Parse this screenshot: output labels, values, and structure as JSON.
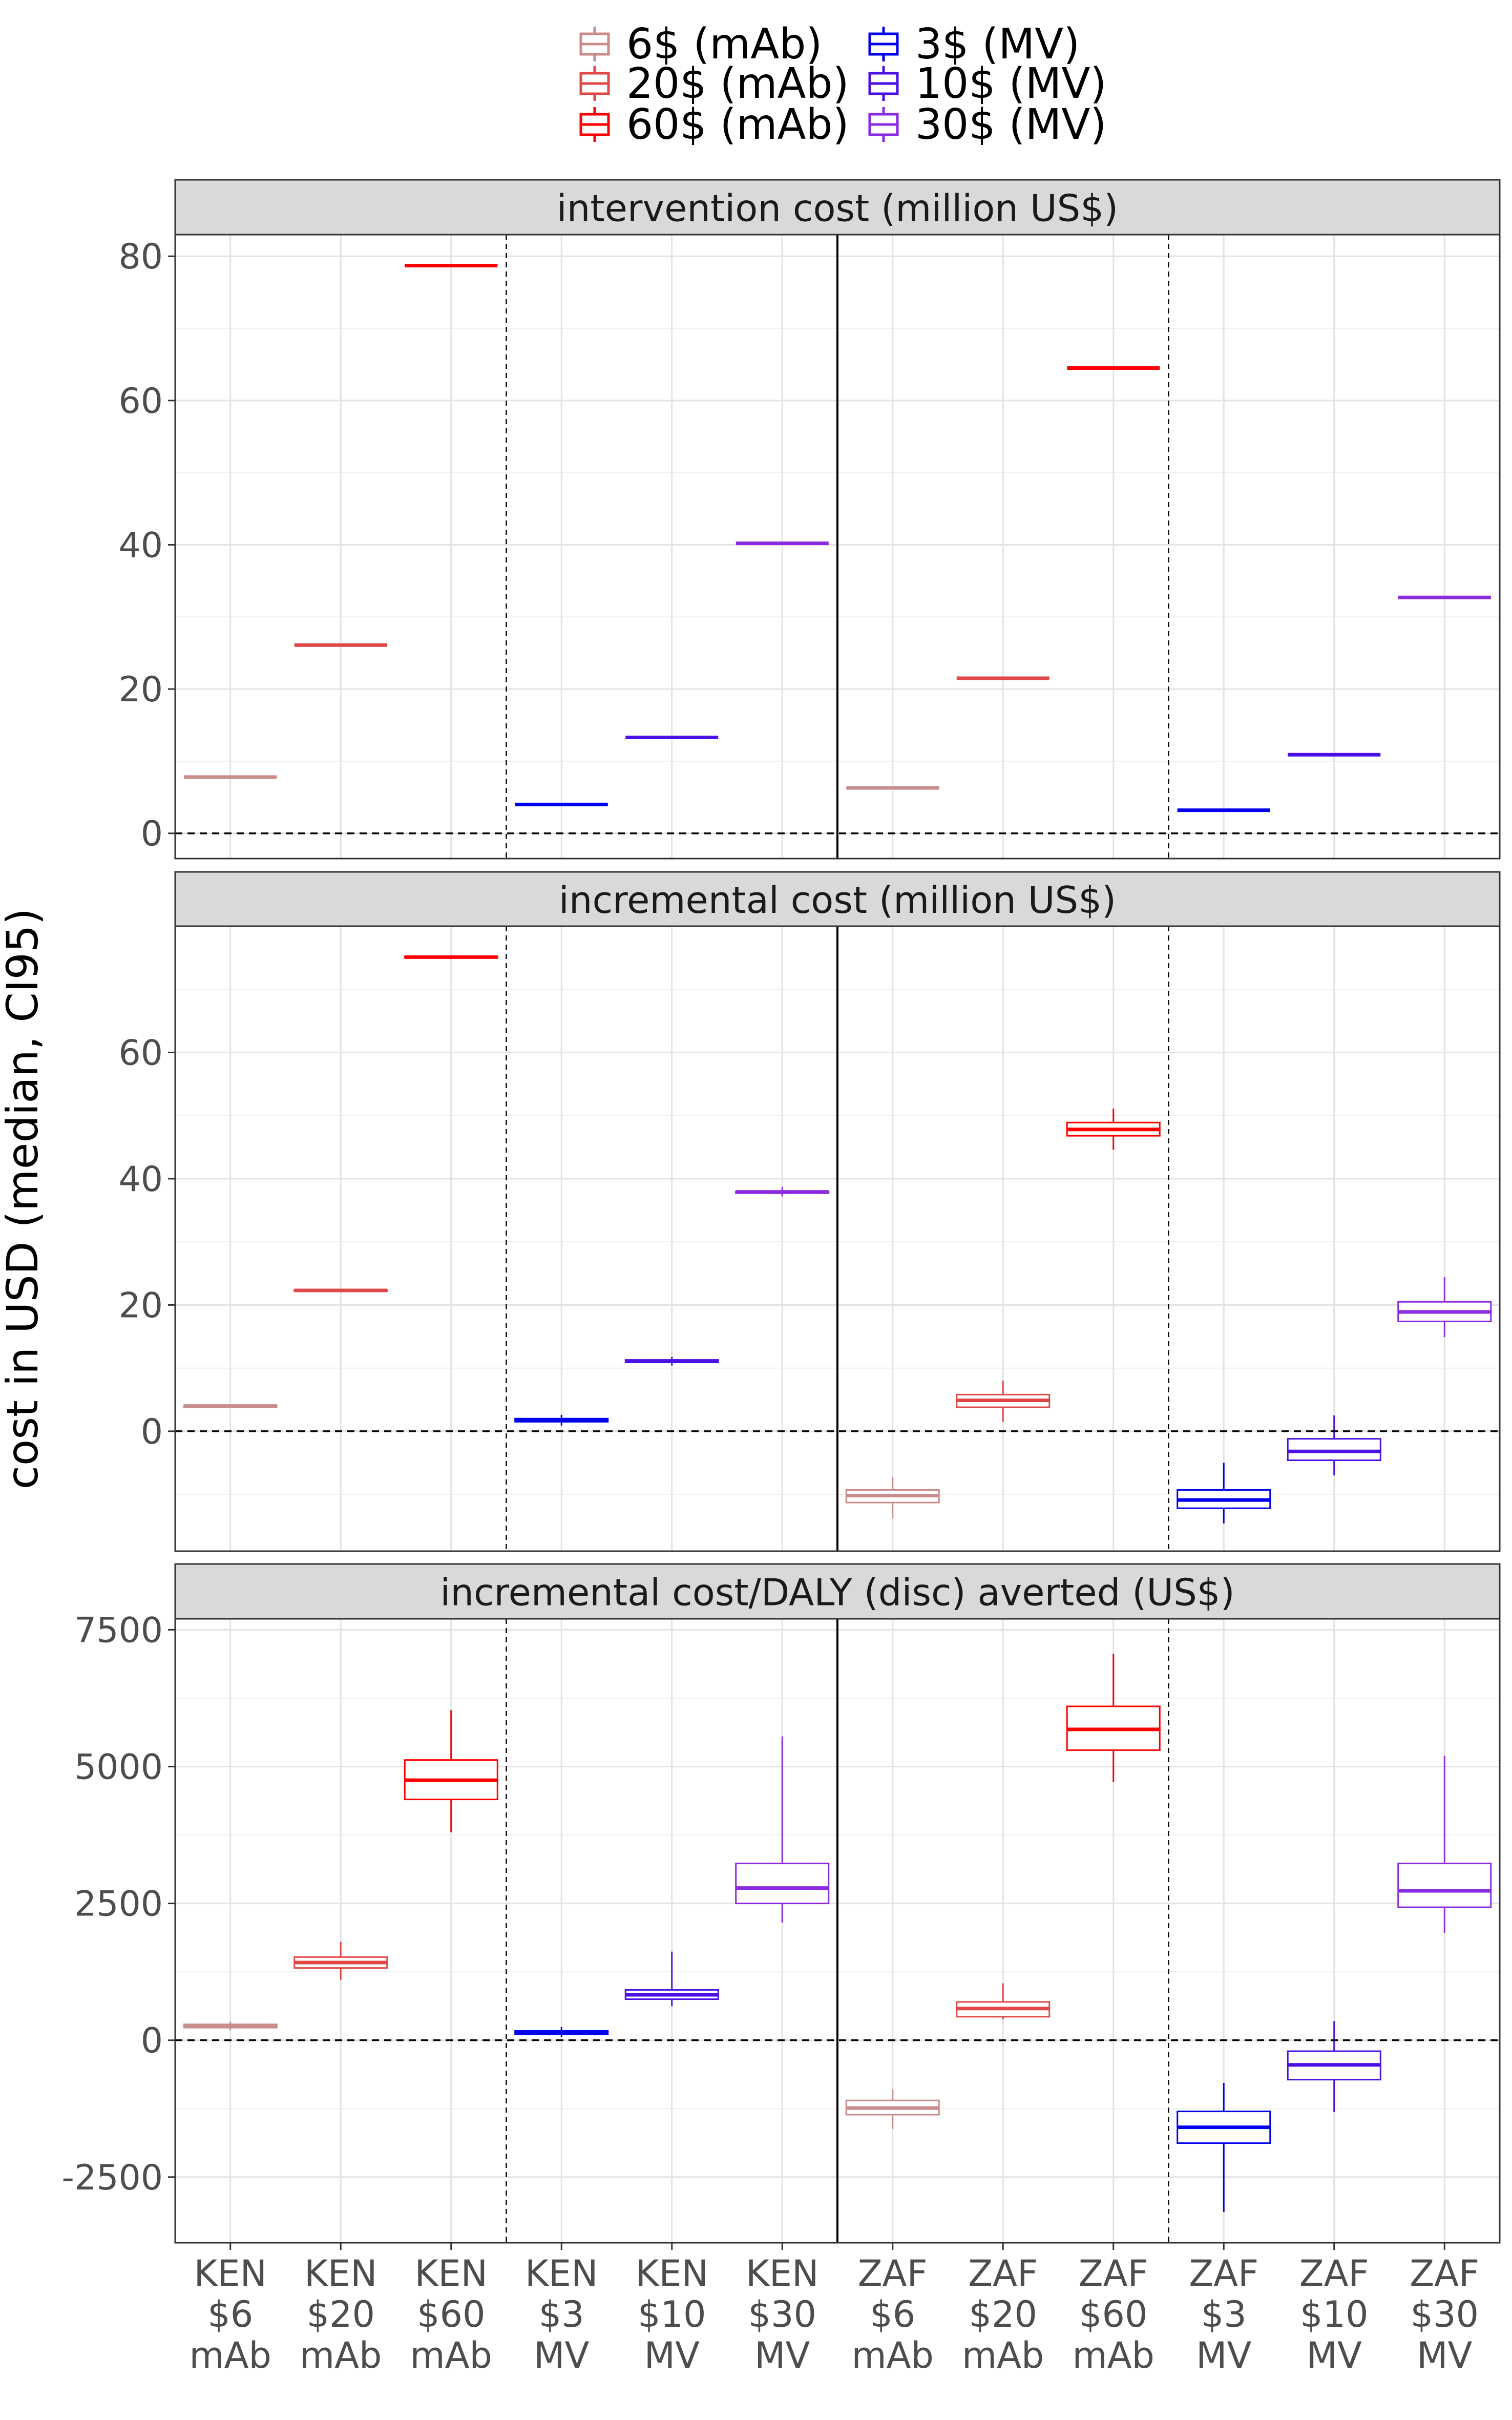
{
  "chart_data": {
    "type": "box",
    "ylabel": "cost in USD (median, CI95)",
    "legend": {
      "position": "top",
      "entries": [
        {
          "label": "6$ (mAb)",
          "color": "#c98c8c"
        },
        {
          "label": "20$ (mAb)",
          "color": "#e04848"
        },
        {
          "label": "60$ (mAb)",
          "color": "#ff0000"
        },
        {
          "label": "3$ (MV)",
          "color": "#0000ee"
        },
        {
          "label": "10$ (MV)",
          "color": "#4a10e6"
        },
        {
          "label": "30$ (MV)",
          "color": "#8a2be2"
        }
      ]
    },
    "categories": [
      [
        "KEN",
        "$6",
        "mAb"
      ],
      [
        "KEN",
        "$20",
        "mAb"
      ],
      [
        "KEN",
        "$60",
        "mAb"
      ],
      [
        "KEN",
        "$3",
        "MV"
      ],
      [
        "KEN",
        "$10",
        "MV"
      ],
      [
        "KEN",
        "$30",
        "MV"
      ],
      [
        "ZAF",
        "$6",
        "mAb"
      ],
      [
        "ZAF",
        "$20",
        "mAb"
      ],
      [
        "ZAF",
        "$60",
        "mAb"
      ],
      [
        "ZAF",
        "$3",
        "MV"
      ],
      [
        "ZAF",
        "$10",
        "MV"
      ],
      [
        "ZAF",
        "$30",
        "MV"
      ]
    ],
    "panels": [
      {
        "title": "intervention cost (million US$)",
        "ylim": [
          -3.5,
          83
        ],
        "yticks": [
          0,
          20,
          40,
          60,
          80
        ],
        "ytick_labels": [
          "0",
          "20",
          "40",
          "60",
          "80"
        ],
        "minor": [
          10,
          30,
          50,
          70
        ],
        "boxes": [
          [
            7.8,
            7.8,
            7.8,
            7.8,
            7.8
          ],
          [
            26.1,
            26.1,
            26.1,
            26.1,
            26.1
          ],
          [
            78.7,
            78.7,
            78.7,
            78.7,
            78.7
          ],
          [
            4.0,
            4.0,
            4.0,
            4.0,
            4.0
          ],
          [
            13.3,
            13.3,
            13.3,
            13.3,
            13.3
          ],
          [
            40.2,
            40.2,
            40.2,
            40.2,
            40.2
          ],
          [
            6.3,
            6.3,
            6.3,
            6.3,
            6.3
          ],
          [
            21.5,
            21.5,
            21.5,
            21.5,
            21.5
          ],
          [
            64.5,
            64.5,
            64.5,
            64.5,
            64.5
          ],
          [
            3.2,
            3.2,
            3.2,
            3.2,
            3.2
          ],
          [
            10.9,
            10.9,
            10.9,
            10.9,
            10.9
          ],
          [
            32.7,
            32.7,
            32.7,
            32.7,
            32.7
          ]
        ]
      },
      {
        "title": "incremental cost (million US$)",
        "ylim": [
          -19,
          80
        ],
        "yticks": [
          0,
          20,
          40,
          60
        ],
        "ytick_labels": [
          "0",
          "20",
          "40",
          "60"
        ],
        "minor": [
          -10,
          10,
          30,
          50,
          70
        ],
        "boxes": [
          [
            3.8,
            3.8,
            4.0,
            4.1,
            4.2
          ],
          [
            22.0,
            22.2,
            22.3,
            22.4,
            22.6
          ],
          [
            74.8,
            75.0,
            75.1,
            75.2,
            75.4
          ],
          [
            0.9,
            1.5,
            1.8,
            2.0,
            2.6
          ],
          [
            10.4,
            10.9,
            11.1,
            11.3,
            11.8
          ],
          [
            37.2,
            37.7,
            37.9,
            38.0,
            38.7
          ],
          [
            -13.8,
            -11.3,
            -10.2,
            -9.3,
            -7.3
          ],
          [
            1.5,
            3.8,
            4.9,
            5.8,
            8.0
          ],
          [
            44.6,
            46.8,
            47.8,
            48.9,
            51.1
          ],
          [
            -14.6,
            -12.2,
            -10.9,
            -9.3,
            -5.0
          ],
          [
            -7.0,
            -4.6,
            -3.2,
            -1.2,
            2.5
          ],
          [
            14.9,
            17.4,
            18.9,
            20.5,
            24.4
          ]
        ]
      },
      {
        "title": "incremental cost/DALY (disc) averted (US$)",
        "ylim": [
          -3700,
          7700
        ],
        "yticks": [
          -2500,
          0,
          2500,
          5000,
          7500
        ],
        "ytick_labels": [
          "-2500",
          "0",
          "2500",
          "5000",
          "7500"
        ],
        "minor": [
          -1250,
          1250,
          3750,
          6250
        ],
        "boxes": [
          [
            180,
            230,
            260,
            290,
            340
          ],
          [
            1100,
            1320,
            1420,
            1520,
            1800
          ],
          [
            3800,
            4400,
            4750,
            5120,
            6030
          ],
          [
            60,
            110,
            140,
            170,
            240
          ],
          [
            620,
            750,
            830,
            920,
            1620
          ],
          [
            2150,
            2500,
            2780,
            3230,
            5550
          ],
          [
            -1620,
            -1360,
            -1240,
            -1100,
            -900
          ],
          [
            380,
            430,
            580,
            700,
            1040
          ],
          [
            4720,
            5300,
            5680,
            6100,
            7060
          ],
          [
            -3140,
            -1880,
            -1590,
            -1300,
            -780
          ],
          [
            -1310,
            -720,
            -450,
            -200,
            350
          ],
          [
            1960,
            2430,
            2730,
            3230,
            5200
          ]
        ]
      }
    ]
  }
}
